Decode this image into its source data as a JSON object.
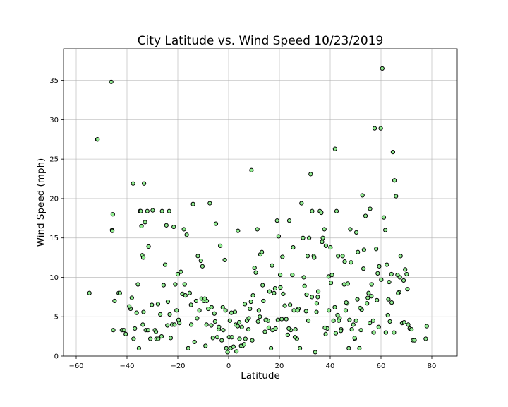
{
  "chart_data": {
    "type": "scatter",
    "title": "City Latitude vs. Wind Speed 10/23/2019",
    "xlabel": "Latitude",
    "ylabel": "Wind Speed (mph)",
    "xlim": [
      -65,
      90
    ],
    "ylim": [
      0,
      39
    ],
    "xticks": [
      -60,
      -40,
      -20,
      0,
      20,
      40,
      60,
      80
    ],
    "yticks": [
      0,
      5,
      10,
      15,
      20,
      25,
      30,
      35
    ],
    "grid": true,
    "marker_color": "#90ee90",
    "marker_edge": "#000000",
    "x": [
      -54.8,
      -51.7,
      -51.6,
      -46.2,
      -45.9,
      -45.8,
      -45.6,
      -45.4,
      -44.9,
      -43.3,
      -42.8,
      -42.0,
      -41.2,
      -40.5,
      -38.6,
      -38.1,
      -37.6,
      -36.9,
      -35.7,
      -35.3,
      -34.9,
      -34.6,
      -34.3,
      -34.0,
      -33.8,
      -33.6,
      -33.3,
      -32.9,
      -32.6,
      -32.0,
      -31.5,
      -30.8,
      -29.9,
      -29.0,
      -28.4,
      -27.7,
      -26.9,
      -26.2,
      -25.6,
      -25.0,
      -24.5,
      -23.9,
      -23.4,
      -22.8,
      -22.2,
      -21.6,
      -21.0,
      -20.5,
      -20.0,
      -19.4,
      -18.8,
      -18.2,
      -17.6,
      -17.0,
      -16.5,
      -15.9,
      -15.3,
      -14.7,
      -14.0,
      -13.4,
      -12.8,
      -12.1,
      -11.5,
      -10.9,
      -10.3,
      -9.7,
      -9.1,
      -8.6,
      -8.0,
      -7.4,
      -6.8,
      -6.2,
      -5.6,
      -5.0,
      -4.5,
      -3.9,
      -3.3,
      -2.7,
      -2.1,
      -1.5,
      -0.9,
      -0.4,
      0.2,
      0.8,
      1.3,
      1.9,
      2.5,
      3.1,
      3.7,
      4.3,
      4.9,
      5.5,
      6.1,
      6.6,
      7.2,
      7.8,
      8.4,
      9.0,
      9.6,
      10.2,
      10.7,
      11.3,
      11.9,
      12.5,
      13.1,
      13.7,
      14.3,
      14.9,
      15.5,
      16.1,
      16.7,
      17.3,
      17.9,
      18.5,
      19.1,
      19.7,
      20.3,
      20.9,
      21.5,
      22.1,
      22.7,
      23.3,
      23.9,
      24.5,
      25.1,
      25.7,
      26.3,
      26.9,
      27.5,
      28.1,
      28.7,
      29.3,
      29.9,
      30.5,
      31.1,
      31.7,
      32.3,
      32.9,
      33.5,
      34.1,
      34.7,
      35.3,
      35.9,
      36.5,
      37.1,
      37.7,
      38.3,
      38.9,
      39.5,
      40.1,
      40.7,
      41.3,
      41.9,
      42.5,
      43.1,
      43.7,
      44.3,
      44.9,
      45.5,
      46.1,
      46.7,
      47.3,
      47.9,
      48.5,
      49.1,
      49.7,
      50.3,
      50.9,
      51.5,
      52.1,
      52.7,
      53.3,
      53.9,
      54.5,
      55.1,
      55.7,
      56.3,
      56.9,
      57.5,
      58.1,
      58.7,
      59.3,
      59.9,
      60.5,
      61.1,
      61.7,
      62.3,
      62.9,
      63.5,
      64.1,
      64.7,
      65.3,
      65.9,
      66.5,
      67.1,
      67.7,
      68.3,
      68.9,
      69.5,
      70.1,
      70.7,
      71.3,
      72.0,
      72.6,
      73.2,
      77.6,
      78.0,
      -33.5,
      -27.8,
      -23.2,
      -19.7,
      -12.4,
      -8.7,
      -3.8,
      0.5,
      4.2,
      7.9,
      11.6,
      15.8,
      19.4,
      23.7,
      27.2,
      31.4,
      34.6,
      38.2,
      41.8,
      44.2,
      46.9,
      49.6,
      52.4,
      55.6,
      58.4,
      61.9,
      64.2,
      66.7,
      69.1,
      -36.2,
      -31.7,
      -26.4,
      -17.3,
      -10.6,
      -5.3,
      -1.2,
      2.8,
      6.4,
      9.3,
      13.4,
      17.1,
      21.2,
      25.4,
      29.6,
      33.7,
      36.8,
      40.3,
      43.4,
      45.7,
      48.2,
      50.7,
      53.1,
      56.2,
      60.1,
      63.2,
      67.4,
      -39.1,
      -30.2,
      -24.1,
      -14.8,
      -6.7,
      1.1,
      5.2,
      12.3,
      18.3,
      24.2,
      30.7,
      35.1,
      39.4,
      42.2,
      47.6,
      51.8,
      57.1,
      62.7,
      -37.4,
      -28.6,
      -21.3,
      -9.4,
      -2.3,
      3.6,
      8.8,
      14.6,
      20.4,
      26.1,
      32.8,
      37.9,
      42.9,
      46.3,
      50.2,
      54.8,
      59.1,
      65.1,
      70.4
    ],
    "y": [
      8.0,
      27.5,
      27.5,
      34.8,
      16.0,
      15.9,
      18.0,
      3.3,
      7.0,
      8.0,
      8.0,
      3.3,
      3.3,
      2.8,
      6.0,
      7.4,
      21.9,
      3.5,
      9.1,
      1.0,
      18.4,
      18.4,
      16.5,
      12.8,
      4.0,
      12.5,
      21.9,
      17.0,
      3.3,
      18.4,
      13.9,
      2.2,
      18.5,
      3.3,
      2.2,
      2.2,
      5.3,
      18.4,
      9.0,
      11.6,
      16.6,
      6.9,
      18.4,
      2.3,
      4.0,
      16.4,
      9.1,
      5.8,
      10.4,
      4.2,
      10.7,
      7.9,
      16.1,
      7.7,
      15.4,
      1.0,
      8.0,
      4.0,
      19.3,
      1.8,
      7.0,
      12.7,
      5.8,
      12.1,
      11.4,
      7.0,
      1.3,
      7.0,
      6.0,
      19.4,
      3.9,
      2.3,
      5.4,
      16.8,
      2.4,
      3.4,
      14.0,
      2.0,
      3.3,
      12.2,
      1.0,
      0.5,
      2.4,
      1.0,
      2.4,
      1.2,
      5.6,
      0.6,
      15.9,
      2.2,
      1.3,
      1.3,
      1.5,
      2.2,
      4.5,
      3.4,
      6.0,
      23.6,
      7.7,
      11.2,
      10.6,
      16.1,
      5.8,
      12.9,
      13.2,
      7.0,
      3.1,
      4.6,
      4.5,
      8.2,
      1.0,
      3.3,
      8.0,
      3.5,
      17.2,
      15.2,
      10.3,
      4.7,
      7.9,
      6.4,
      4.7,
      2.7,
      17.2,
      3.3,
      10.3,
      5.8,
      3.4,
      2.2,
      6.0,
      1.0,
      19.4,
      15.0,
      8.9,
      5.7,
      12.7,
      15.0,
      23.1,
      18.4,
      12.7,
      0.5,
      6.7,
      8.2,
      18.4,
      18.2,
      15.0,
      16.1,
      14.0,
      3.5,
      5.8,
      13.8,
      10.3,
      4.5,
      26.3,
      18.4,
      12.7,
      4.8,
      3.4,
      12.7,
      9.1,
      5.8,
      6.7,
      1.0,
      16.1,
      3.4,
      4.0,
      2.2,
      15.7,
      13.2,
      1.0,
      3.3,
      20.4,
      13.5,
      17.8,
      6.7,
      8.0,
      18.7,
      9.1,
      4.5,
      28.9,
      13.6,
      10.5,
      11.4,
      28.9,
      36.5,
      17.6,
      16.0,
      11.6,
      7.2,
      4.4,
      10.4,
      25.9,
      22.3,
      20.3,
      10.3,
      8.1,
      12.7,
      4.2,
      9.6,
      11.0,
      10.4,
      4.0,
      3.5,
      3.4,
      2.0,
      2.0,
      2.2,
      3.8,
      5.6,
      6.6,
      5.3,
      4.6,
      4.8,
      4.0,
      3.7,
      4.5,
      4.3,
      4.8,
      4.4,
      3.6,
      4.6,
      3.5,
      5.8,
      4.5,
      5.6,
      2.8,
      6.2,
      3.2,
      9.2,
      2.3,
      5.9,
      4.2,
      7.1,
      3.0,
      6.8,
      8.0,
      4.3,
      5.5,
      3.3,
      2.5,
      9.1,
      7.3,
      4.4,
      5.8,
      4.0,
      6.6,
      2.0,
      9.0,
      11.5,
      12.6,
      13.8,
      10.0,
      12.5,
      14.5,
      9.3,
      4.5,
      12.0,
      11.9,
      7.2,
      11.1,
      7.6,
      9.7,
      9.4,
      10.0,
      6.3,
      6.5,
      3.9,
      6.5,
      6.2,
      5.5,
      3.7,
      5.0,
      8.6,
      6.5,
      7.8,
      7.5,
      10.1,
      2.9,
      4.6,
      6.1,
      3.0,
      5.2,
      2.2,
      3.1,
      4.0,
      7.3,
      6.2,
      3.8,
      6.9,
      4.6,
      8.7,
      2.4,
      7.5,
      3.6,
      5.2,
      6.8,
      4.5,
      7.4,
      3.7,
      3.0,
      8.5
    ]
  }
}
